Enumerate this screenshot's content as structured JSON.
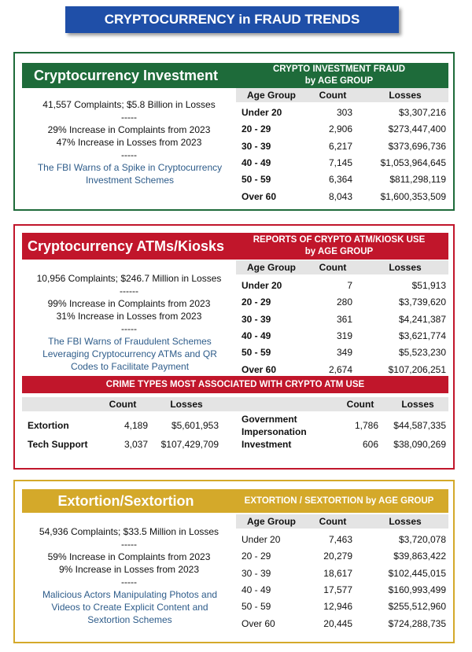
{
  "title": "CRYPTOCURRENCY in FRAUD TRENDS",
  "sections": [
    {
      "heading": "Cryptocurrency Investment",
      "table_title": [
        "CRYPTO INVESTMENT FRAUD",
        "by AGE GROUP"
      ],
      "summary": [
        "41,557 Complaints; $5.8 Billion in Losses",
        "-----",
        "29% Increase in Complaints from 2023",
        "47% Increase in Losses from 2023",
        "-----"
      ],
      "note": "The FBI Warns of a Spike in Cryptocurrency Investment Schemes",
      "table": {
        "columns": [
          "Age Group",
          "Count",
          "Losses"
        ],
        "rows": [
          [
            "Under 20",
            "303",
            "$3,307,216"
          ],
          [
            "20 - 29",
            "2,906",
            "$273,447,400"
          ],
          [
            "30 - 39",
            "6,217",
            "$373,696,736"
          ],
          [
            "40 - 49",
            "7,145",
            "$1,053,964,645"
          ],
          [
            "50 - 59",
            "6,364",
            "$811,298,119"
          ],
          [
            "Over 60",
            "8,043",
            "$1,600,353,509"
          ]
        ]
      }
    },
    {
      "heading": "Cryptocurrency ATMs/Kiosks",
      "table_title": [
        "REPORTS OF CRYPTO ATM/KIOSK USE",
        "by AGE GROUP"
      ],
      "summary": [
        "10,956 Complaints; $246.7 Million in Losses",
        "------",
        "99% Increase in Complaints from 2023",
        "31% Increase in Losses from 2023",
        "-----"
      ],
      "note": "The FBI Warns of Fraudulent Schemes Leveraging Cryptocurrency ATMs and QR Codes to Facilitate Payment",
      "table": {
        "columns": [
          "Age Group",
          "Count",
          "Losses"
        ],
        "rows": [
          [
            "Under 20",
            "7",
            "$51,913"
          ],
          [
            "20 - 29",
            "280",
            "$3,739,620"
          ],
          [
            "30 - 39",
            "361",
            "$4,241,387"
          ],
          [
            "40 - 49",
            "319",
            "$3,621,774"
          ],
          [
            "50 - 59",
            "349",
            "$5,523,230"
          ],
          [
            "Over 60",
            "2,674",
            "$107,206,251"
          ]
        ]
      }
    },
    {
      "heading": "Extortion/Sextortion",
      "table_title": [
        "EXTORTION / SEXTORTION by AGE GROUP"
      ],
      "summary": [
        "54,936 Complaints; $33.5 Million in Losses",
        "-----",
        "59% Increase in Complaints from 2023",
        "9% Increase in Losses from 2023",
        "-----"
      ],
      "note": "Malicious Actors Manipulating Photos and Videos to Create Explicit Content and Sextortion Schemes",
      "table": {
        "columns": [
          "Age Group",
          "Count",
          "Losses"
        ],
        "rows": [
          [
            "Under 20",
            "7,463",
            "$3,720,078"
          ],
          [
            "20 - 29",
            "20,279",
            "$39,863,422"
          ],
          [
            "30 - 39",
            "18,617",
            "$102,445,015"
          ],
          [
            "40 - 49",
            "17,577",
            "$160,993,499"
          ],
          [
            "50 - 59",
            "12,946",
            "$255,512,960"
          ],
          [
            "Over 60",
            "20,445",
            "$724,288,735"
          ]
        ]
      }
    }
  ],
  "crime_types": {
    "title": "CRIME TYPES MOST ASSOCIATED WITH CRYPTO ATM USE",
    "columns": [
      "Count",
      "Losses",
      "Count",
      "Losses"
    ],
    "rows": [
      [
        "Extortion",
        "4,189",
        "$5,601,953",
        "Government Impersonation",
        "1,786",
        "$44,587,335"
      ],
      [
        "Tech Support",
        "3,037",
        "$107,429,709",
        "Investment",
        "606",
        "$38,090,269"
      ]
    ]
  }
}
